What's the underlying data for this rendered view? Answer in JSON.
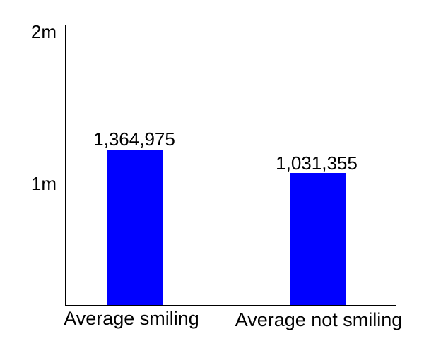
{
  "chart_data": {
    "type": "bar",
    "title": "",
    "xlabel": "",
    "ylabel": "",
    "categories": [
      "Average smiling",
      "Average not smiling"
    ],
    "values": [
      1364975,
      1031355
    ],
    "value_labels": [
      "1,364,975",
      "1,031,355"
    ],
    "y_ticks": [
      "2m",
      "1m"
    ],
    "y_tick_values": [
      2000000,
      1000000
    ],
    "ylim": [
      0,
      2000000
    ],
    "bar_color": "#0000ff",
    "axis_color": "#000000",
    "text_color": "#000000",
    "background_color": "#ffffff",
    "grid": false,
    "legend_position": "none"
  }
}
